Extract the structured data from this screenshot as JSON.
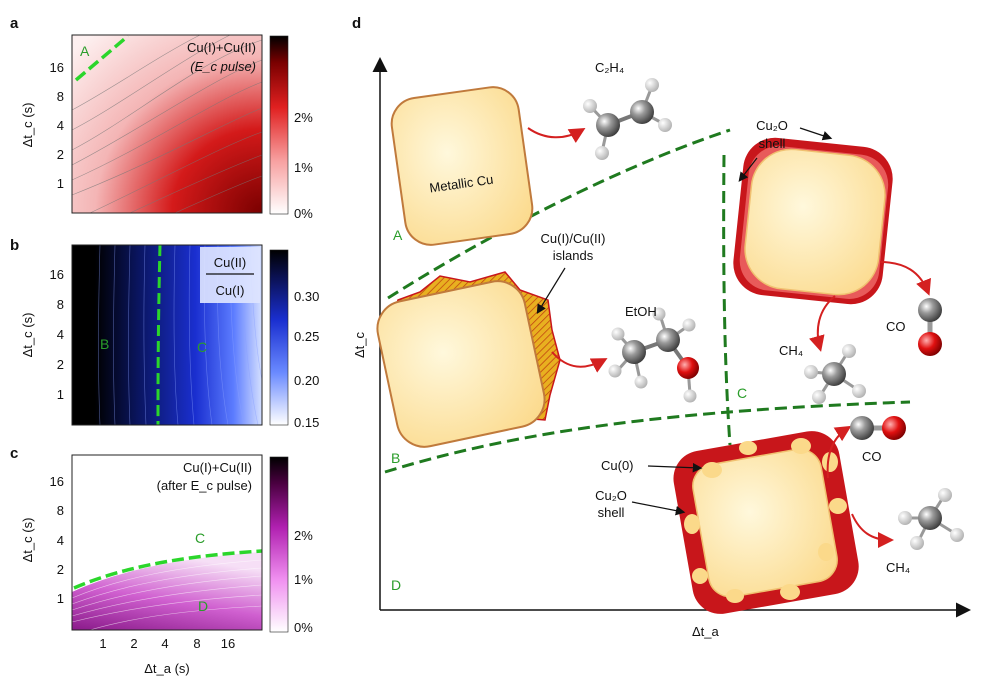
{
  "panels": {
    "a": {
      "label": "a",
      "title_line1": "Cu(I)+Cu(II)",
      "title_line2": "(E_c pulse)",
      "ylabel": "Δt_c (s)",
      "y_ticks": [
        "16",
        "8",
        "4",
        "2",
        "1"
      ],
      "colorbar_ticks": [
        "2%",
        "1%",
        "0%"
      ],
      "region_label": "A"
    },
    "b": {
      "label": "b",
      "ratio_numerator": "Cu(II)",
      "ratio_denominator": "Cu(I)",
      "ylabel": "Δt_c (s)",
      "y_ticks": [
        "16",
        "8",
        "4",
        "2",
        "1"
      ],
      "colorbar_ticks": [
        "0.30",
        "0.25",
        "0.20",
        "0.15"
      ],
      "region_left": "B",
      "region_right": "C"
    },
    "c": {
      "label": "c",
      "title_line1": "Cu(I)+Cu(II)",
      "title_line2": "(after E_c pulse)",
      "ylabel": "Δt_c (s)",
      "xlabel": "Δt_a (s)",
      "y_ticks": [
        "16",
        "8",
        "4",
        "2",
        "1"
      ],
      "x_ticks": [
        "1",
        "2",
        "4",
        "8",
        "16"
      ],
      "colorbar_ticks": [
        "2%",
        "1%",
        "0%"
      ],
      "region_top": "C",
      "region_bottom": "D"
    },
    "d": {
      "label": "d",
      "xlabel": "Δt_a",
      "ylabel": "Δt_c",
      "regions": [
        "A",
        "B",
        "C",
        "D"
      ],
      "metallic_cu": "Metallic Cu",
      "islands_line1": "Cu(I)/Cu(II)",
      "islands_line2": "islands",
      "cu2o_shell_top_line1": "Cu₂O",
      "cu2o_shell_top_line2": "shell",
      "cu0": "Cu(0)",
      "cu2o_shell_bottom_line1": "Cu₂O",
      "cu2o_shell_bottom_line2": "shell",
      "products": {
        "c2h4": "C₂H₄",
        "etoh": "EtOH",
        "co_top": "CO",
        "ch4_top": "CH₄",
        "co_bottom": "CO",
        "ch4_bottom": "CH₄"
      }
    }
  },
  "colors": {
    "red_max": "#8a0000",
    "blue_max": "#1a2bd8",
    "magenta_max": "#5a004a",
    "dash_green": "#2bd62b",
    "diagram_green": "#1f7a1f",
    "arrow_red": "#d42020",
    "particle_fill": "#fde6a6",
    "particle_edge": "#c07a3c",
    "shell_red": "#c8161b"
  }
}
